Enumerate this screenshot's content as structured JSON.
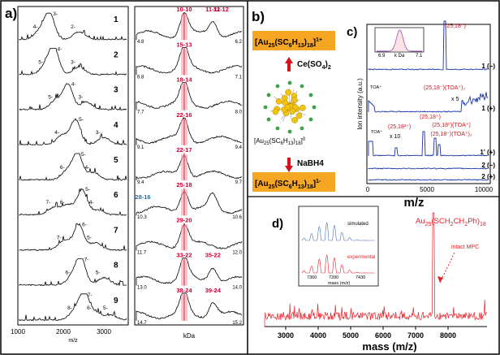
{
  "figure": {
    "panel_a": {
      "label": "a)",
      "left_xlabel": "m/z",
      "left_ticks": [
        "1000",
        "2000",
        "3000"
      ],
      "right_xlabel": "kDa",
      "rows": [
        {
          "index": "1",
          "left_labels": [
            "3-",
            "4-",
            "2-"
          ],
          "peak": "10-10",
          "extra_peaks": [
            "11-11",
            "12-12"
          ],
          "xmin": "4.8",
          "xmax": "6.2",
          "color": "#cc0033"
        },
        {
          "index": "2",
          "left_labels": [
            "4-",
            "5-",
            "3-"
          ],
          "peak": "15-13",
          "extra_peaks": [],
          "xmin": "6.8",
          "xmax": "7.1",
          "color": "#cc0033"
        },
        {
          "index": "3",
          "left_labels": [
            "4-",
            "5-",
            "3-"
          ],
          "peak": "18-14",
          "extra_peaks": [],
          "xmin": "7.7",
          "xmax": "8.0",
          "color": "#cc0033"
        },
        {
          "index": "4",
          "left_labels": [
            "5-",
            "4-",
            "3-"
          ],
          "peak": "22-16",
          "extra_peaks": [],
          "xmin": "9.1",
          "xmax": "9.4",
          "color": "#cc0033"
        },
        {
          "index": "5",
          "left_labels": [
            "5-",
            "6-",
            "4-"
          ],
          "peak": "22-17",
          "extra_peaks": [],
          "xmin": "9.4",
          "xmax": "9.7",
          "color": "#cc0033"
        },
        {
          "index": "6",
          "left_labels": [
            "5-",
            "6-",
            "7-",
            "4-"
          ],
          "peak": "25-18",
          "extra_peaks": [
            "28-16"
          ],
          "xmin": "10.3",
          "xmax": "10.6",
          "color": "#cc0033"
        },
        {
          "index": "7",
          "left_labels": [
            "6-",
            "7-",
            "5-"
          ],
          "peak": "29-20",
          "extra_peaks": [],
          "xmin": "11.7",
          "xmax": "12.0",
          "color": "#cc0033"
        },
        {
          "index": "8",
          "left_labels": [
            "7-",
            "6-",
            "5-"
          ],
          "peak": "33-22",
          "extra_peaks": [
            "35-22"
          ],
          "xmin": "13.0",
          "xmax": "14.0",
          "color": "#cc0033"
        },
        {
          "index": "9",
          "left_labels": [
            "7-",
            "8-",
            "6-",
            "5-"
          ],
          "peak": "38-24",
          "extra_peaks": [
            "39-24"
          ],
          "xmin": "14.7",
          "xmax": "15.2",
          "color": "#cc0033"
        }
      ]
    },
    "panel_b": {
      "label": "b)",
      "oxidized_formula": "[Au25(SC6H13)18]1+",
      "oxidant": "Ce(SO4)2",
      "neutral_formula": "[Au25(SC6H13)18]0",
      "reductant": "NaBH4",
      "reduced_formula": "[Au25(SC6H13)18]1-"
    },
    "panel_c": {
      "label": "c)",
      "ylabel": "Ion intensity (a.u.)",
      "xlabel": "m/z",
      "xticks": [
        "0",
        "5000",
        "10000"
      ],
      "inset_xlabel": "k Da",
      "inset_ticks": [
        "6.9",
        "7.1"
      ],
      "traces": [
        {
          "label": "1 (−)",
          "annotations": [
            "(25,18⁻)"
          ]
        },
        {
          "label": "1 (+)",
          "annotations": [
            "TOA⁺",
            "(25,18⁻)(TOA⁺)₂",
            "x 5"
          ]
        },
        {
          "label": "1' (+)",
          "annotations": [
            "TOA⁺",
            "(25,18²⁺)",
            "x 10",
            "(25,18⁺)",
            "(25,18⁰)(TOA⁺)",
            "(25,18⁻)(TOA⁺)₂"
          ]
        },
        {
          "label": "2 (−)",
          "annotations": []
        },
        {
          "label": "2 (+)",
          "annotations": []
        }
      ]
    },
    "panel_d": {
      "label": "d)",
      "formula": "Au25(SCH2CH2Ph)18",
      "note": "intact MPC",
      "xlabel": "mass (m/z)",
      "xticks": [
        "3000",
        "4000",
        "5000",
        "6000",
        "7000",
        "8000"
      ],
      "inset_simulated": "simulated",
      "inset_experimental": "experimental",
      "inset_xlabel": "mass (m/z)",
      "inset_ticks": [
        "7360",
        "7390",
        "7430"
      ]
    }
  }
}
